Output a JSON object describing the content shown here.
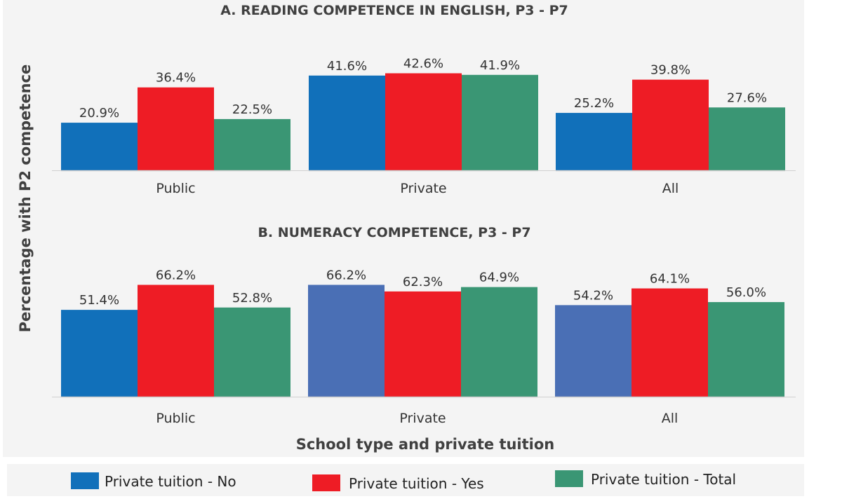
{
  "chart_data": {
    "type": "bar",
    "ylabel": "Percentage with P2 competence",
    "xlabel": "School type and private tuition",
    "legend_position": "bottom",
    "series_meta": [
      {
        "name": "Private tuition - No",
        "color": "#1170BA"
      },
      {
        "name": "Private tuition - Yes",
        "color": "#EE1C25"
      },
      {
        "name": "Private tuition - Total",
        "color": "#3A9674"
      }
    ],
    "panels": [
      {
        "title": "A. READING COMPETENCE IN ENGLISH, P3 - P7",
        "categories": [
          "Public",
          "Private",
          "All"
        ],
        "series": [
          {
            "name": "Private tuition - No",
            "values": [
              20.9,
              41.6,
              25.2
            ],
            "labels": [
              "20.9%",
              "41.6%",
              "25.2%"
            ]
          },
          {
            "name": "Private tuition - Yes",
            "values": [
              36.4,
              42.6,
              39.8
            ],
            "labels": [
              "36.4%",
              "42.6%",
              "39.8%"
            ]
          },
          {
            "name": "Private tuition - Total",
            "values": [
              22.5,
              41.9,
              27.6
            ],
            "labels": [
              "22.5%",
              "41.9%",
              "27.6%"
            ]
          }
        ]
      },
      {
        "title": "B. NUMERACY COMPETENCE, P3 - P7",
        "categories": [
          "Public",
          "Private",
          "All"
        ],
        "no_series_colors": [
          "#1170BA",
          "#4A6FB5",
          "#4A6FB5"
        ],
        "series": [
          {
            "name": "Private tuition - No",
            "values": [
              51.4,
              66.2,
              54.2
            ],
            "labels": [
              "51.4%",
              "66.2%",
              "54.2%"
            ]
          },
          {
            "name": "Private tuition - Yes",
            "values": [
              66.2,
              62.3,
              64.1
            ],
            "labels": [
              "66.2%",
              "62.3%",
              "64.1%"
            ]
          },
          {
            "name": "Private tuition - Total",
            "values": [
              52.8,
              64.9,
              56.0
            ],
            "labels": [
              "52.8%",
              "64.9%",
              "56.0%"
            ]
          }
        ]
      }
    ]
  }
}
